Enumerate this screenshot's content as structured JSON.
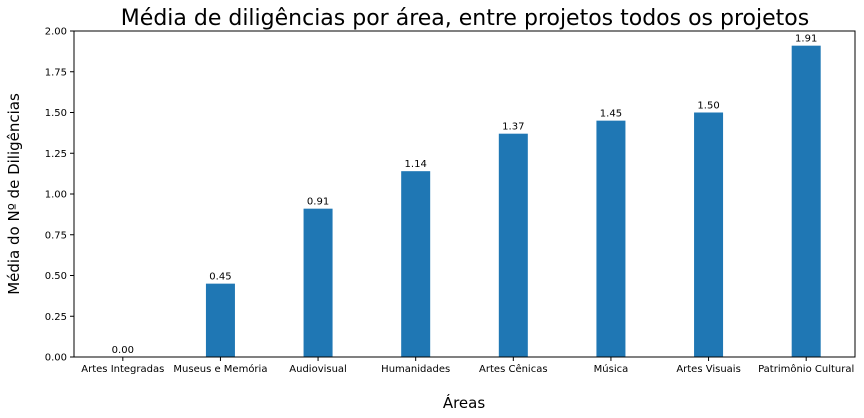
{
  "chart_data": {
    "type": "bar",
    "title": "Média de diligências por área, entre projetos todos os projetos",
    "xlabel": "Áreas",
    "ylabel": "Média do Nº de Diligências",
    "categories": [
      "Artes Integradas",
      "Museus e Memória",
      "Audiovisual",
      "Humanidades",
      "Artes Cênicas",
      "Música",
      "Artes Visuais",
      "Patrimônio Cultural"
    ],
    "values": [
      0.0,
      0.45,
      0.91,
      1.14,
      1.37,
      1.45,
      1.5,
      1.91
    ],
    "value_labels": [
      "0.00",
      "0.45",
      "0.91",
      "1.14",
      "1.37",
      "1.45",
      "1.50",
      "1.91"
    ],
    "ylim": [
      0,
      2.0
    ],
    "yticks": [
      0.0,
      0.25,
      0.5,
      0.75,
      1.0,
      1.25,
      1.5,
      1.75,
      2.0
    ],
    "ytick_labels": [
      "0.00",
      "0.25",
      "0.50",
      "0.75",
      "1.00",
      "1.25",
      "1.50",
      "1.75",
      "2.00"
    ],
    "bar_color": "#1f77b4",
    "grid": false,
    "legend": "none"
  }
}
